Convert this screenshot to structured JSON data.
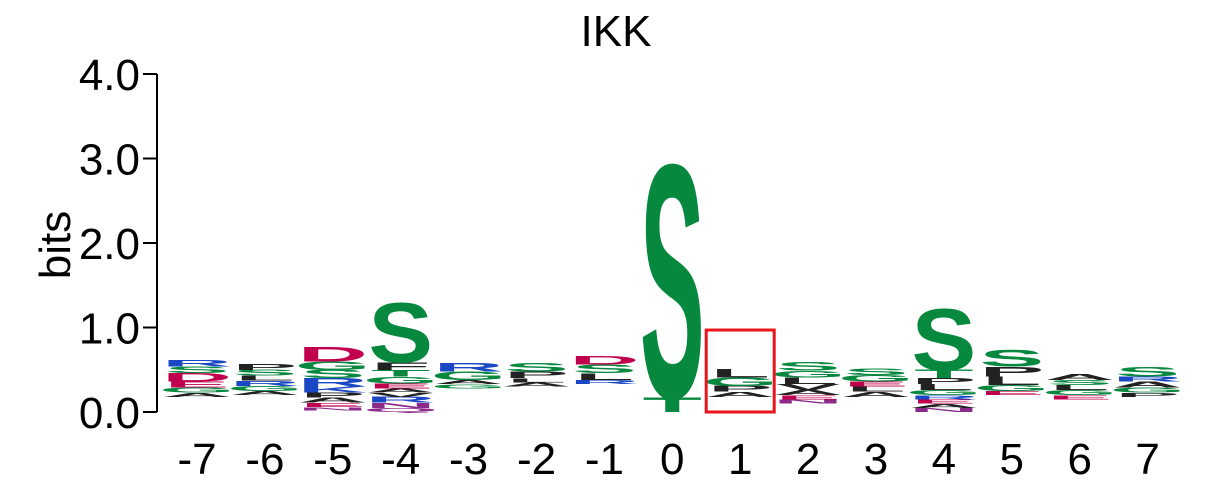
{
  "chart_data": {
    "type": "sequence-logo",
    "title": "IKK",
    "ylabel": "bits",
    "xlabel": "",
    "ylim": [
      0,
      4
    ],
    "yticks": [
      0,
      1,
      2,
      3,
      4
    ],
    "ytick_labels": [
      "0.0",
      "1.0",
      "2.0",
      "3.0",
      "4.0"
    ],
    "positions": [
      "-7",
      "-6",
      "-5",
      "-4",
      "-3",
      "-2",
      "-1",
      "0",
      "1",
      "2",
      "3",
      "4",
      "5",
      "6",
      "7"
    ],
    "highlighted_position": "1",
    "colors": {
      "S": "#07883f",
      "T": "#07883f",
      "G": "#07883f",
      "D": "#c0004e",
      "E": "#c0004e",
      "R": "#1a48c4",
      "K": "#1a48c4",
      "P": "#222222",
      "L": "#222222",
      "A": "#222222",
      "V": "#222222",
      "I": "#222222",
      "F": "#222222",
      "Y": "#222222",
      "M": "#222222",
      "N": "#8b2a8b",
      "Q": "#8b2a8b",
      "highlight": "#e8151b"
    },
    "stacks": [
      {
        "pos": "-7",
        "base": 0.18,
        "letters": [
          {
            "aa": "A",
            "h": 0.05
          },
          {
            "aa": "G",
            "h": 0.06
          },
          {
            "aa": "E",
            "h": 0.07
          },
          {
            "aa": "D",
            "h": 0.1
          },
          {
            "aa": "S",
            "h": 0.08
          },
          {
            "aa": "R",
            "h": 0.08
          }
        ]
      },
      {
        "pos": "-6",
        "base": 0.2,
        "letters": [
          {
            "aa": "A",
            "h": 0.05
          },
          {
            "aa": "G",
            "h": 0.06
          },
          {
            "aa": "R",
            "h": 0.06
          },
          {
            "aa": "L",
            "h": 0.06
          },
          {
            "aa": "S",
            "h": 0.07
          },
          {
            "aa": "P",
            "h": 0.07
          }
        ]
      },
      {
        "pos": "-5",
        "base": 0.02,
        "letters": [
          {
            "aa": "N",
            "h": 0.04
          },
          {
            "aa": "E",
            "h": 0.05
          },
          {
            "aa": "A",
            "h": 0.06
          },
          {
            "aa": "P",
            "h": 0.06
          },
          {
            "aa": "K",
            "h": 0.07
          },
          {
            "aa": "R",
            "h": 0.1
          },
          {
            "aa": "S",
            "h": 0.1
          },
          {
            "aa": "G",
            "h": 0.1
          },
          {
            "aa": "D",
            "h": 0.18
          }
        ]
      },
      {
        "pos": "-4",
        "base": 0.0,
        "letters": [
          {
            "aa": "Q",
            "h": 0.05
          },
          {
            "aa": "N",
            "h": 0.06
          },
          {
            "aa": "R",
            "h": 0.07
          },
          {
            "aa": "V",
            "h": 0.05
          },
          {
            "aa": "A",
            "h": 0.05
          },
          {
            "aa": "E",
            "h": 0.06
          },
          {
            "aa": "G",
            "h": 0.08
          },
          {
            "aa": "T",
            "h": 0.08
          },
          {
            "aa": "F",
            "h": 0.09
          },
          {
            "aa": "S",
            "h": 0.72
          }
        ]
      },
      {
        "pos": "-3",
        "base": 0.28,
        "letters": [
          {
            "aa": "G",
            "h": 0.05
          },
          {
            "aa": "A",
            "h": 0.05
          },
          {
            "aa": "G",
            "h": 0.1
          },
          {
            "aa": "R",
            "h": 0.1
          }
        ]
      },
      {
        "pos": "-2",
        "base": 0.3,
        "letters": [
          {
            "aa": "A",
            "h": 0.05
          },
          {
            "aa": "L",
            "h": 0.05
          },
          {
            "aa": "P",
            "h": 0.08
          },
          {
            "aa": "S",
            "h": 0.1
          }
        ]
      },
      {
        "pos": "-1",
        "base": 0.33,
        "letters": [
          {
            "aa": "R",
            "h": 0.05
          },
          {
            "aa": "L",
            "h": 0.08
          },
          {
            "aa": "S",
            "h": 0.1
          },
          {
            "aa": "D",
            "h": 0.1
          }
        ]
      },
      {
        "pos": "0",
        "base": 0.0,
        "letters": [
          {
            "aa": "T",
            "h": 0.18
          },
          {
            "aa": "S",
            "h": 2.83
          }
        ]
      },
      {
        "pos": "1",
        "base": 0.18,
        "letters": [
          {
            "aa": "A",
            "h": 0.06
          },
          {
            "aa": "P",
            "h": 0.07
          },
          {
            "aa": "G",
            "h": 0.1
          },
          {
            "aa": "L",
            "h": 0.1
          }
        ]
      },
      {
        "pos": "2",
        "base": 0.1,
        "letters": [
          {
            "aa": "N",
            "h": 0.05
          },
          {
            "aa": "E",
            "h": 0.05
          },
          {
            "aa": "A",
            "h": 0.06
          },
          {
            "aa": "V",
            "h": 0.07
          },
          {
            "aa": "L",
            "h": 0.08
          },
          {
            "aa": "G",
            "h": 0.08
          },
          {
            "aa": "S",
            "h": 0.1
          }
        ]
      },
      {
        "pos": "3",
        "base": 0.18,
        "letters": [
          {
            "aa": "A",
            "h": 0.06
          },
          {
            "aa": "L",
            "h": 0.06
          },
          {
            "aa": "E",
            "h": 0.06
          },
          {
            "aa": "G",
            "h": 0.08
          },
          {
            "aa": "S",
            "h": 0.08
          }
        ]
      },
      {
        "pos": "4",
        "base": 0.0,
        "letters": [
          {
            "aa": "N",
            "h": 0.05
          },
          {
            "aa": "A",
            "h": 0.05
          },
          {
            "aa": "E",
            "h": 0.05
          },
          {
            "aa": "R",
            "h": 0.05
          },
          {
            "aa": "G",
            "h": 0.06
          },
          {
            "aa": "L",
            "h": 0.07
          },
          {
            "aa": "P",
            "h": 0.07
          },
          {
            "aa": "T",
            "h": 0.1
          },
          {
            "aa": "S",
            "h": 0.75
          }
        ]
      },
      {
        "pos": "5",
        "base": 0.2,
        "letters": [
          {
            "aa": "E",
            "h": 0.05
          },
          {
            "aa": "G",
            "h": 0.07
          },
          {
            "aa": "L",
            "h": 0.1
          },
          {
            "aa": "P",
            "h": 0.12
          },
          {
            "aa": "S",
            "h": 0.2
          }
        ]
      },
      {
        "pos": "6",
        "base": 0.15,
        "letters": [
          {
            "aa": "E",
            "h": 0.05
          },
          {
            "aa": "G",
            "h": 0.06
          },
          {
            "aa": "L",
            "h": 0.06
          },
          {
            "aa": "S",
            "h": 0.06
          },
          {
            "aa": "A",
            "h": 0.07
          }
        ]
      },
      {
        "pos": "7",
        "base": 0.18,
        "letters": [
          {
            "aa": "P",
            "h": 0.05
          },
          {
            "aa": "G",
            "h": 0.06
          },
          {
            "aa": "A",
            "h": 0.07
          },
          {
            "aa": "R",
            "h": 0.06
          },
          {
            "aa": "S",
            "h": 0.12
          }
        ]
      }
    ]
  }
}
